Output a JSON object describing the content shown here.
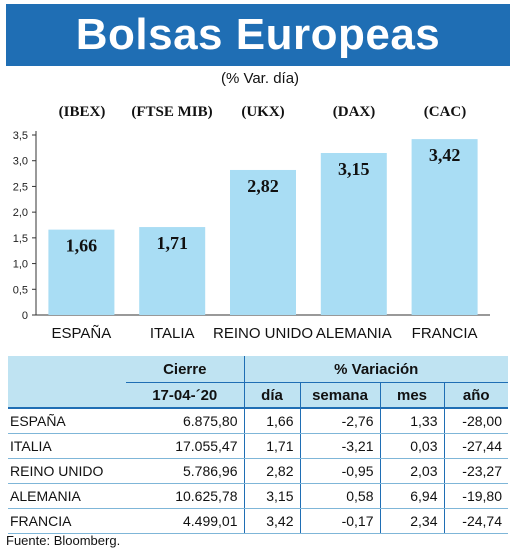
{
  "title": "Bolsas Europeas",
  "subtitle": "(% Var. día)",
  "colors": {
    "header_bg": "#1f6eb4",
    "bar": "#a9ddf4",
    "table_header": "#bfe3f2"
  },
  "indices": [
    "(IBEX)",
    "(FTSE MIB)",
    "(UKX)",
    "(DAX)",
    "(CAC)"
  ],
  "chart_data": {
    "type": "bar",
    "categories": [
      "ESPAÑA",
      "ITALIA",
      "REINO UNIDO",
      "ALEMANIA",
      "FRANCIA"
    ],
    "values": [
      1.66,
      1.71,
      2.82,
      3.15,
      3.42
    ],
    "value_labels": [
      "1,66",
      "1,71",
      "2,82",
      "3,15",
      "3,42"
    ],
    "ylim": [
      0,
      3.5
    ],
    "yticks": [
      "0",
      "0,5",
      "1,0",
      "1,5",
      "2,0",
      "2,5",
      "3,0",
      "3,5"
    ],
    "title": "",
    "xlabel": "",
    "ylabel": "",
    "grid": false
  },
  "table": {
    "header_cierre": "Cierre",
    "header_variacion": "% Variación",
    "date": "17-04-´20",
    "cols": [
      "día",
      "semana",
      "mes",
      "año"
    ],
    "rows": [
      {
        "name": "ESPAÑA",
        "cierre": "6.875,80",
        "dia": "1,66",
        "semana": "-2,76",
        "mes": "1,33",
        "anio": "-28,00"
      },
      {
        "name": "ITALIA",
        "cierre": "17.055,47",
        "dia": "1,71",
        "semana": "-3,21",
        "mes": "0,03",
        "anio": "-27,44"
      },
      {
        "name": "REINO UNIDO",
        "cierre": "5.786,96",
        "dia": "2,82",
        "semana": "-0,95",
        "mes": "2,03",
        "anio": "-23,27"
      },
      {
        "name": "ALEMANIA",
        "cierre": "10.625,78",
        "dia": "3,15",
        "semana": "0,58",
        "mes": "6,94",
        "anio": "-19,80"
      },
      {
        "name": "FRANCIA",
        "cierre": "4.499,01",
        "dia": "3,42",
        "semana": "-0,17",
        "mes": "2,34",
        "anio": "-24,74"
      }
    ]
  },
  "source": "Fuente: Bloomberg."
}
